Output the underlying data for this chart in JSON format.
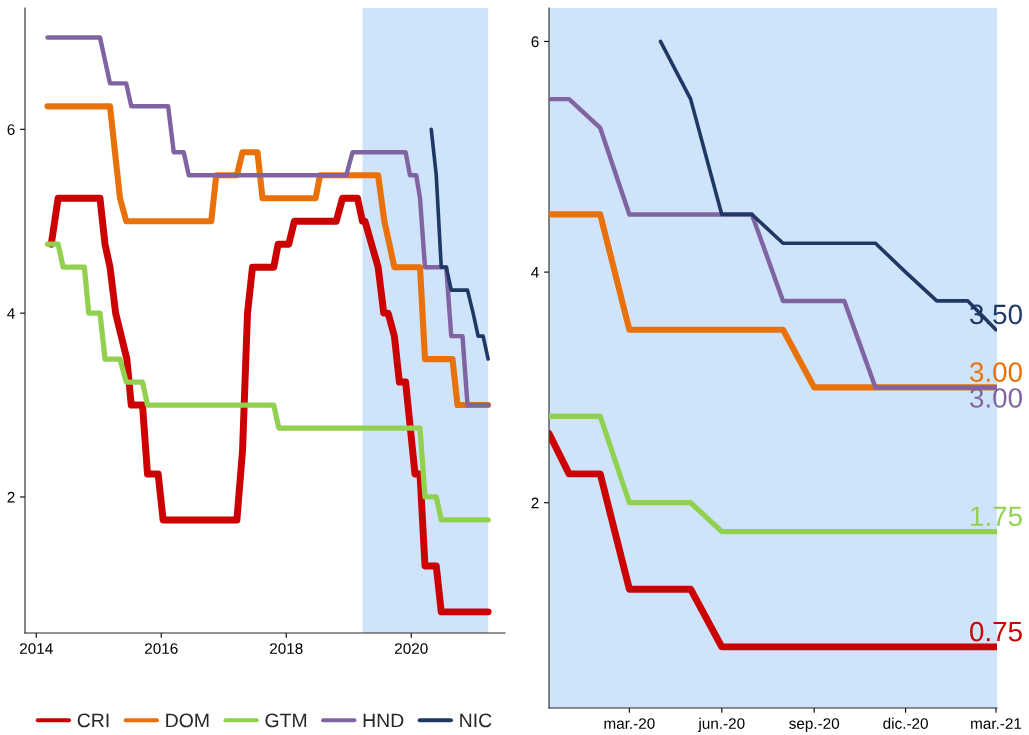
{
  "chart_data": [
    {
      "type": "line",
      "xlim": [
        2013.82,
        2021.5
      ],
      "ylim": [
        0.52,
        7.32
      ],
      "xticks": [
        2014,
        2016,
        2018,
        2020
      ],
      "yticks": [
        2,
        4,
        6
      ],
      "grid": false,
      "legend": "bottom",
      "line_style": "solid",
      "bands": [
        {
          "axis": "x",
          "from": 2019.22,
          "to": 2021.23,
          "color": "#cfe4fb"
        }
      ],
      "series": [
        {
          "name": "CRI",
          "color": "#cc0000",
          "x": [
            2014.24,
            2014.35,
            2015.02,
            2015.1,
            2015.18,
            2015.27,
            2015.45,
            2015.52,
            2015.7,
            2015.78,
            2015.95,
            2016.03,
            2017.21,
            2017.3,
            2017.38,
            2017.46,
            2017.8,
            2017.87,
            2018.04,
            2018.13,
            2018.8,
            2018.9,
            2019.14,
            2019.22,
            2019.26,
            2019.47,
            2019.56,
            2019.63,
            2019.73,
            2019.81,
            2019.91,
            2020.06,
            2020.14,
            2020.22,
            2020.4,
            2020.48,
            2021.23
          ],
          "values": [
            4.75,
            5.25,
            5.25,
            4.75,
            4.5,
            4.0,
            3.5,
            3.0,
            3.0,
            2.25,
            2.25,
            1.75,
            1.75,
            2.5,
            4.0,
            4.5,
            4.5,
            4.75,
            4.75,
            5.0,
            5.0,
            5.25,
            5.25,
            5.0,
            5.0,
            4.5,
            4.0,
            4.0,
            3.75,
            3.25,
            3.25,
            2.25,
            2.25,
            1.25,
            1.25,
            0.75,
            0.75
          ]
        },
        {
          "name": "DOM",
          "color": "#e8710a",
          "x": [
            2014.18,
            2015.18,
            2015.34,
            2015.44,
            2016.8,
            2016.88,
            2017.21,
            2017.3,
            2017.54,
            2017.62,
            2018.47,
            2018.54,
            2019.47,
            2019.57,
            2019.73,
            2020.14,
            2020.22,
            2020.66,
            2020.74,
            2021.23
          ],
          "values": [
            6.25,
            6.25,
            5.25,
            5.0,
            5.0,
            5.5,
            5.5,
            5.75,
            5.75,
            5.25,
            5.25,
            5.5,
            5.5,
            5.0,
            4.5,
            4.5,
            3.5,
            3.5,
            3.0,
            3.0
          ]
        },
        {
          "name": "GTM",
          "color": "#92d050",
          "x": [
            2014.18,
            2014.35,
            2014.43,
            2014.77,
            2014.84,
            2015.02,
            2015.1,
            2015.34,
            2015.44,
            2015.7,
            2015.78,
            2017.8,
            2017.88,
            2020.14,
            2020.22,
            2020.4,
            2020.48,
            2021.23
          ],
          "values": [
            4.75,
            4.75,
            4.5,
            4.5,
            4.0,
            4.0,
            3.5,
            3.5,
            3.25,
            3.25,
            3.0,
            3.0,
            2.75,
            2.75,
            2.0,
            2.0,
            1.75,
            1.75
          ]
        },
        {
          "name": "HND",
          "color": "#8064a2",
          "x": [
            2014.18,
            2015.02,
            2015.18,
            2015.44,
            2015.52,
            2016.11,
            2016.2,
            2016.36,
            2016.44,
            2018.96,
            2019.06,
            2019.91,
            2019.98,
            2020.08,
            2020.14,
            2020.22,
            2020.56,
            2020.64,
            2020.82,
            2020.9,
            2021.23
          ],
          "values": [
            7.0,
            7.0,
            6.5,
            6.5,
            6.25,
            6.25,
            5.75,
            5.75,
            5.5,
            5.5,
            5.75,
            5.75,
            5.5,
            5.5,
            5.25,
            4.5,
            4.5,
            3.75,
            3.75,
            3.0,
            3.0
          ]
        },
        {
          "name": "NIC",
          "color": "#1f3864",
          "x": [
            2020.32,
            2020.4,
            2020.48,
            2020.56,
            2020.64,
            2020.9,
            2020.99,
            2021.07,
            2021.15,
            2021.23
          ],
          "values": [
            6.0,
            5.5,
            4.5,
            4.5,
            4.25,
            4.25,
            4.0,
            3.75,
            3.75,
            3.5
          ]
        }
      ]
    },
    {
      "type": "line",
      "xlim": [
        "2019-12-12",
        "2021-03-02"
      ],
      "ylim": [
        0.22,
        6.29
      ],
      "yticks": [
        2,
        4,
        6
      ],
      "grid": false,
      "line_style": "solid",
      "xticks": [
        {
          "value": "2020-03-01",
          "label": "mar.-20"
        },
        {
          "value": "2020-06-01",
          "label": "jun.-20"
        },
        {
          "value": "2020-09-01",
          "label": "sep.-20"
        },
        {
          "value": "2020-12-01",
          "label": "dic.-20"
        },
        {
          "value": "2021-03-01",
          "label": "mar.-21"
        }
      ],
      "bands": [
        {
          "axis": "x",
          "from": "2019-12-12",
          "to": "2021-03-02",
          "color": "#cfe4fb"
        }
      ],
      "series": [
        {
          "color": "#cc0000",
          "x": [
            "2019-12-12",
            "2020-01-01",
            "2020-02-01",
            "2020-03-01",
            "2020-04-01",
            "2020-05-01",
            "2020-06-01",
            "2021-03-01"
          ],
          "values": [
            2.6,
            2.25,
            2.25,
            1.25,
            1.25,
            1.25,
            0.75,
            0.75
          ]
        },
        {
          "color": "#e8710a",
          "x": [
            "2019-12-12",
            "2020-01-01",
            "2020-02-01",
            "2020-03-01",
            "2020-08-01",
            "2020-09-01",
            "2021-03-01"
          ],
          "values": [
            4.5,
            4.5,
            4.5,
            3.5,
            3.5,
            3.0,
            3.0
          ]
        },
        {
          "color": "#92d050",
          "x": [
            "2019-12-12",
            "2020-01-01",
            "2020-02-01",
            "2020-03-01",
            "2020-05-01",
            "2020-06-01",
            "2021-03-01"
          ],
          "values": [
            2.75,
            2.75,
            2.75,
            2.0,
            2.0,
            1.75,
            1.75
          ]
        },
        {
          "color": "#8064a2",
          "x": [
            "2019-12-12",
            "2020-01-01",
            "2020-02-01",
            "2020-03-01",
            "2020-07-01",
            "2020-08-01",
            "2020-10-01",
            "2020-11-01",
            "2021-03-01"
          ],
          "values": [
            5.5,
            5.5,
            5.25,
            4.5,
            4.5,
            3.75,
            3.75,
            3.0,
            3.0
          ]
        },
        {
          "color": "#1f3864",
          "x": [
            "2020-04-01",
            "2020-05-01",
            "2020-06-01",
            "2020-07-01",
            "2020-08-01",
            "2020-11-01",
            "2020-12-01",
            "2021-01-01",
            "2021-02-01",
            "2021-03-01"
          ],
          "values": [
            6.0,
            5.5,
            4.5,
            4.5,
            4.25,
            4.25,
            4.0,
            3.75,
            3.75,
            3.5
          ]
        }
      ],
      "annotations": [
        {
          "text": "3.50",
          "x": "2021-03-01",
          "y": 3.5
        },
        {
          "text": "3.00",
          "x": "2021-03-01",
          "y": 3.0
        },
        {
          "text": "3.00",
          "x": "2021-03-01",
          "y": 3.0
        },
        {
          "text": "1.75",
          "x": "2021-03-01",
          "y": 1.75
        },
        {
          "text": "0.75",
          "x": "2021-03-01",
          "y": 0.75
        }
      ]
    }
  ]
}
